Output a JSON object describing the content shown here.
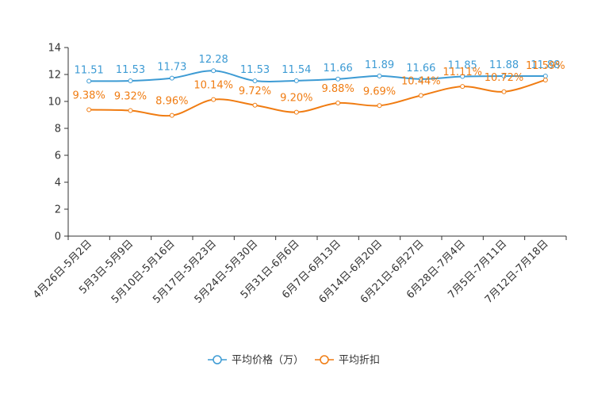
{
  "chart_data": {
    "type": "line",
    "title": "",
    "xlabel": "",
    "ylabel": "",
    "ylim": [
      0,
      14
    ],
    "yticks": [
      0,
      2,
      4,
      6,
      8,
      10,
      12,
      14
    ],
    "grid": false,
    "legend_position": "bottom-center",
    "categories": [
      "4月26日-5月2日",
      "5月3日-5月9日",
      "5月10日-5月16日",
      "5月17日-5月23日",
      "5月24日-5月30日",
      "5月31日-6月6日",
      "6月7日-6月13日",
      "6月14日-6月20日",
      "6月21日-6月27日",
      "6月28日-7月4日",
      "7月5日-7月11日",
      "7月12日-7月18日"
    ],
    "series": [
      {
        "name": "平均价格（万）",
        "color": "#3d9bd4",
        "values": [
          11.51,
          11.53,
          11.73,
          12.28,
          11.53,
          11.54,
          11.66,
          11.89,
          11.66,
          11.85,
          11.88,
          11.88
        ],
        "labels": [
          "11.51",
          "11.53",
          "11.73",
          "12.28",
          "11.53",
          "11.54",
          "11.66",
          "11.89",
          "11.66",
          "11.85",
          "11.88",
          "11.88"
        ]
      },
      {
        "name": "平均折扣",
        "color": "#f07c12",
        "values": [
          9.38,
          9.32,
          8.96,
          10.14,
          9.72,
          9.2,
          9.88,
          9.69,
          10.44,
          11.11,
          10.72,
          11.59
        ],
        "labels": [
          "9.38%",
          "9.32%",
          "8.96%",
          "10.14%",
          "9.72%",
          "9.20%",
          "9.88%",
          "9.69%",
          "10.44%",
          "11.11%",
          "10.72%",
          "11.59%"
        ]
      }
    ]
  }
}
